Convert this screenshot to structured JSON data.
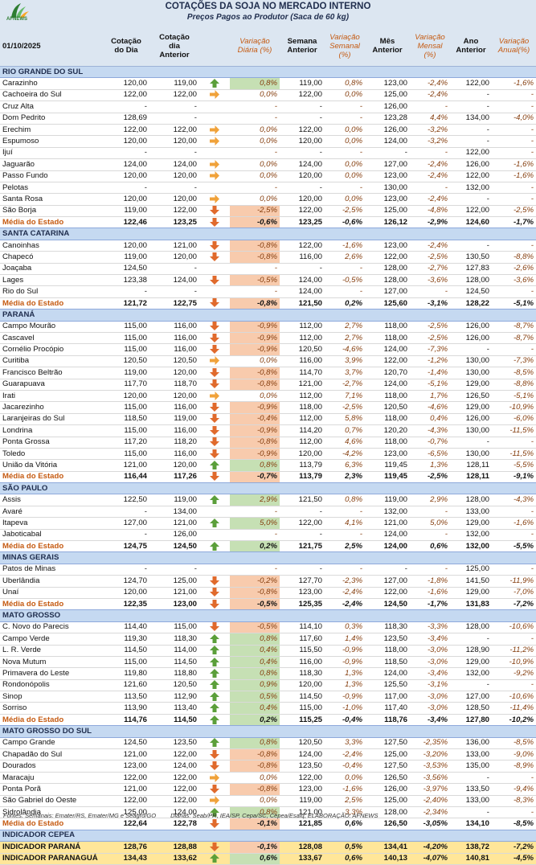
{
  "header": {
    "logo": "AFNEWS",
    "title": "COTAÇÕES  DA SOJA NO MERCADO INTERNO",
    "subtitle": "Preços Pagos ao Produtor (Saca de 60 kg)",
    "date": "01/10/2025",
    "columns": [
      "Cotação\ndo Dia",
      "Cotação\ndia\nAnterior",
      "Variação\nDiária (%)",
      "Semana\nAnterior",
      "Variação\nSemanal\n(%)",
      "Mês\nAnterior",
      "Variação\nMensal\n(%)",
      "Ano\nAnterior",
      "Variação\nAnual(%)"
    ]
  },
  "sections": [
    {
      "title": "RIO GRANDE DO SUL",
      "total_row": true,
      "highlight": false,
      "trends": [
        "up",
        "flat",
        null,
        null,
        "flat",
        "flat",
        null,
        "flat",
        "flat",
        null,
        "flat",
        "down",
        "down"
      ],
      "rows": [
        [
          "Carazinho",
          "120,00",
          "119,00",
          "0,8%",
          "119,00",
          "0,8%",
          "123,00",
          "-2,4%",
          "122,00",
          "-1,6%"
        ],
        [
          "Cachoeira do Sul",
          "122,00",
          "122,00",
          "0,0%",
          "122,00",
          "0,0%",
          "125,00",
          "-2,4%",
          "-",
          "-"
        ],
        [
          "Cruz Alta",
          "-",
          "-",
          "-",
          "-",
          "-",
          "126,00",
          "-",
          "-",
          "-"
        ],
        [
          "Dom Pedrito",
          "128,69",
          "-",
          "-",
          "-",
          "-",
          "123,28",
          "4,4%",
          "134,00",
          "-4,0%"
        ],
        [
          "Erechim",
          "122,00",
          "122,00",
          "0,0%",
          "122,00",
          "0,0%",
          "126,00",
          "-3,2%",
          "-",
          "-"
        ],
        [
          "Espumoso",
          "120,00",
          "120,00",
          "0,0%",
          "120,00",
          "0,0%",
          "124,00",
          "-3,2%",
          "-",
          "-"
        ],
        [
          "Ijuí",
          "-",
          "-",
          "-",
          "-",
          "-",
          "-",
          "-",
          "122,00",
          "-"
        ],
        [
          "Jaguarão",
          "124,00",
          "124,00",
          "0,0%",
          "124,00",
          "0,0%",
          "127,00",
          "-2,4%",
          "126,00",
          "-1,6%"
        ],
        [
          "Passo Fundo",
          "120,00",
          "120,00",
          "0,0%",
          "120,00",
          "0,0%",
          "123,00",
          "-2,4%",
          "122,00",
          "-1,6%"
        ],
        [
          "Pelotas",
          "-",
          "-",
          "-",
          "-",
          "-",
          "130,00",
          "-",
          "132,00",
          "-"
        ],
        [
          "Santa Rosa",
          "120,00",
          "120,00",
          "0,0%",
          "120,00",
          "0,0%",
          "123,00",
          "-2,4%",
          "-",
          "-"
        ],
        [
          "São Borja",
          "119,00",
          "122,00",
          "-2,5%",
          "122,00",
          "-2,5%",
          "125,00",
          "-4,8%",
          "122,00",
          "-2,5%"
        ],
        [
          "Média do Estado",
          "122,46",
          "123,25",
          "-0,6%",
          "123,25",
          "-0,6%",
          "126,12",
          "-2,9%",
          "124,60",
          "-1,7%"
        ]
      ]
    },
    {
      "title": "SANTA CATARINA",
      "total_row": true,
      "highlight": false,
      "trends": [
        "down",
        "down",
        null,
        "down",
        null,
        "down"
      ],
      "rows": [
        [
          "Canoinhas",
          "120,00",
          "121,00",
          "-0,8%",
          "122,00",
          "-1,6%",
          "123,00",
          "-2,4%",
          "-",
          "-"
        ],
        [
          "Chapecó",
          "119,00",
          "120,00",
          "-0,8%",
          "116,00",
          "2,6%",
          "122,00",
          "-2,5%",
          "130,50",
          "-8,8%"
        ],
        [
          "Joaçaba",
          "124,50",
          "-",
          "-",
          "-",
          "-",
          "128,00",
          "-2,7%",
          "127,83",
          "-2,6%"
        ],
        [
          "Lages",
          "123,38",
          "124,00",
          "-0,5%",
          "124,00",
          "-0,5%",
          "128,00",
          "-3,6%",
          "128,00",
          "-3,6%"
        ],
        [
          "Rio do Sul",
          "-",
          "-",
          "-",
          "124,00",
          "-",
          "127,00",
          "-",
          "124,50",
          "-"
        ],
        [
          "Média do Estado",
          "121,72",
          "122,75",
          "-0,8%",
          "121,50",
          "0,2%",
          "125,60",
          "-3,1%",
          "128,22",
          "-5,1%"
        ]
      ]
    },
    {
      "title": "PARANÁ",
      "total_row": true,
      "highlight": false,
      "trends": [
        "down",
        "down",
        "down",
        "flat",
        "down",
        "down",
        "flat",
        "down",
        "down",
        "down",
        "down",
        "down",
        "up",
        "down"
      ],
      "rows": [
        [
          "Campo Mourão",
          "115,00",
          "116,00",
          "-0,9%",
          "112,00",
          "2,7%",
          "118,00",
          "-2,5%",
          "126,00",
          "-8,7%"
        ],
        [
          "Cascavel",
          "115,00",
          "116,00",
          "-0,9%",
          "112,00",
          "2,7%",
          "118,00",
          "-2,5%",
          "126,00",
          "-8,7%"
        ],
        [
          "Cornélio Procópio",
          "115,00",
          "116,00",
          "-0,9%",
          "120,50",
          "-4,6%",
          "124,00",
          "-7,3%",
          "-",
          "-"
        ],
        [
          "Curitiba",
          "120,50",
          "120,50",
          "0,0%",
          "116,00",
          "3,9%",
          "122,00",
          "-1,2%",
          "130,00",
          "-7,3%"
        ],
        [
          "Francisco Beltrão",
          "119,00",
          "120,00",
          "-0,8%",
          "114,70",
          "3,7%",
          "120,70",
          "-1,4%",
          "130,00",
          "-8,5%"
        ],
        [
          "Guarapuava",
          "117,70",
          "118,70",
          "-0,8%",
          "121,00",
          "-2,7%",
          "124,00",
          "-5,1%",
          "129,00",
          "-8,8%"
        ],
        [
          "Irati",
          "120,00",
          "120,00",
          "0,0%",
          "112,00",
          "7,1%",
          "118,00",
          "1,7%",
          "126,50",
          "-5,1%"
        ],
        [
          "Jacarezinho",
          "115,00",
          "116,00",
          "-0,9%",
          "118,00",
          "-2,5%",
          "120,50",
          "-4,6%",
          "129,00",
          "-10,9%"
        ],
        [
          "Laranjeiras do Sul",
          "118,50",
          "119,00",
          "-0,4%",
          "112,00",
          "5,8%",
          "118,00",
          "0,4%",
          "126,00",
          "-6,0%"
        ],
        [
          "Londrina",
          "115,00",
          "116,00",
          "-0,9%",
          "114,20",
          "0,7%",
          "120,20",
          "-4,3%",
          "130,00",
          "-11,5%"
        ],
        [
          "Ponta Grossa",
          "117,20",
          "118,20",
          "-0,8%",
          "112,00",
          "4,6%",
          "118,00",
          "-0,7%",
          "-",
          "-"
        ],
        [
          "Toledo",
          "115,00",
          "116,00",
          "-0,9%",
          "120,00",
          "-4,2%",
          "123,00",
          "-6,5%",
          "130,00",
          "-11,5%"
        ],
        [
          "União da Vitória",
          "121,00",
          "120,00",
          "0,8%",
          "113,79",
          "6,3%",
          "119,45",
          "1,3%",
          "128,11",
          "-5,5%"
        ],
        [
          "Média do Estado",
          "116,44",
          "117,26",
          "-0,7%",
          "113,79",
          "2,3%",
          "119,45",
          "-2,5%",
          "128,11",
          "-9,1%"
        ]
      ]
    },
    {
      "title": "SÃO PAULO",
      "total_row": true,
      "highlight": false,
      "trends": [
        "up",
        null,
        "up",
        null,
        "up"
      ],
      "rows": [
        [
          "Assis",
          "122,50",
          "119,00",
          "2,9%",
          "121,50",
          "0,8%",
          "119,00",
          "2,9%",
          "128,00",
          "-4,3%"
        ],
        [
          "Avaré",
          "-",
          "134,00",
          "-",
          "-",
          "-",
          "132,00",
          "-",
          "133,00",
          "-"
        ],
        [
          "Itapeva",
          "127,00",
          "121,00",
          "5,0%",
          "122,00",
          "4,1%",
          "121,00",
          "5,0%",
          "129,00",
          "-1,6%"
        ],
        [
          "Jaboticabal",
          "-",
          "126,00",
          "-",
          "-",
          "-",
          "124,00",
          "-",
          "132,00",
          "-"
        ],
        [
          "Média do Estado",
          "124,75",
          "124,50",
          "0,2%",
          "121,75",
          "2,5%",
          "124,00",
          "0,6%",
          "132,00",
          "-5,5%"
        ]
      ]
    },
    {
      "title": "MINAS GERAIS",
      "total_row": true,
      "highlight": false,
      "trends": [
        null,
        "down",
        "down",
        "down"
      ],
      "rows": [
        [
          "Patos de Minas",
          "-",
          "-",
          "-",
          "-",
          "-",
          "-",
          "-",
          "125,00",
          "-"
        ],
        [
          "Uberlândia",
          "124,70",
          "125,00",
          "-0,2%",
          "127,70",
          "-2,3%",
          "127,00",
          "-1,8%",
          "141,50",
          "-11,9%"
        ],
        [
          "Unaí",
          "120,00",
          "121,00",
          "-0,8%",
          "123,00",
          "-2,4%",
          "122,00",
          "-1,6%",
          "129,00",
          "-7,0%"
        ],
        [
          "Média do Estado",
          "122,35",
          "123,00",
          "-0,5%",
          "125,35",
          "-2,4%",
          "124,50",
          "-1,7%",
          "131,83",
          "-7,2%"
        ]
      ]
    },
    {
      "title": "MATO GROSSO",
      "total_row": true,
      "highlight": false,
      "trends": [
        "down",
        "up",
        "up",
        "up",
        "up",
        "up",
        "up",
        "up",
        "up"
      ],
      "rows": [
        [
          "C. Novo do Parecis",
          "114,40",
          "115,00",
          "-0,5%",
          "114,10",
          "0,3%",
          "118,30",
          "-3,3%",
          "128,00",
          "-10,6%"
        ],
        [
          "Campo Verde",
          "119,30",
          "118,30",
          "0,8%",
          "117,60",
          "1,4%",
          "123,50",
          "-3,4%",
          "-",
          "-"
        ],
        [
          "L. R. Verde",
          "114,50",
          "114,00",
          "0,4%",
          "115,50",
          "-0,9%",
          "118,00",
          "-3,0%",
          "128,90",
          "-11,2%"
        ],
        [
          "Nova Mutum",
          "115,00",
          "114,50",
          "0,4%",
          "116,00",
          "-0,9%",
          "118,50",
          "-3,0%",
          "129,00",
          "-10,9%"
        ],
        [
          "Primavera do Leste",
          "119,80",
          "118,80",
          "0,8%",
          "118,30",
          "1,3%",
          "124,00",
          "-3,4%",
          "132,00",
          "-9,2%"
        ],
        [
          "Rondonópolis",
          "121,60",
          "120,50",
          "0,9%",
          "120,00",
          "1,3%",
          "125,50",
          "-3,1%",
          "-",
          "-"
        ],
        [
          "Sinop",
          "113,50",
          "112,90",
          "0,5%",
          "114,50",
          "-0,9%",
          "117,00",
          "-3,0%",
          "127,00",
          "-10,6%"
        ],
        [
          "Sorriso",
          "113,90",
          "113,40",
          "0,4%",
          "115,00",
          "-1,0%",
          "117,40",
          "-3,0%",
          "128,50",
          "-11,4%"
        ],
        [
          "Média do Estado",
          "114,76",
          "114,50",
          "0,2%",
          "115,25",
          "-0,4%",
          "118,76",
          "-3,4%",
          "127,80",
          "-10,2%"
        ]
      ]
    },
    {
      "title": "MATO GROSSO DO SUL",
      "total_row": true,
      "highlight": false,
      "trends": [
        "up",
        "down",
        "down",
        "flat",
        "down",
        "flat",
        "up",
        "down"
      ],
      "rows": [
        [
          "Campo Grande",
          "124,50",
          "123,50",
          "0,8%",
          "120,50",
          "3,3%",
          "127,50",
          "-2,35%",
          "136,00",
          "-8,5%"
        ],
        [
          "Chapadão do Sul",
          "121,00",
          "122,00",
          "-0,8%",
          "124,00",
          "-2,4%",
          "125,00",
          "-3,20%",
          "133,00",
          "-9,0%"
        ],
        [
          "Dourados",
          "123,00",
          "124,00",
          "-0,8%",
          "123,50",
          "-0,4%",
          "127,50",
          "-3,53%",
          "135,00",
          "-8,9%"
        ],
        [
          "Maracaju",
          "122,00",
          "122,00",
          "0,0%",
          "122,00",
          "0,0%",
          "126,50",
          "-3,56%",
          "-",
          "-"
        ],
        [
          "Ponta Porã",
          "121,00",
          "122,00",
          "-0,8%",
          "123,00",
          "-1,6%",
          "126,00",
          "-3,97%",
          "133,50",
          "-9,4%"
        ],
        [
          "São Gabriel do Oeste",
          "122,00",
          "122,00",
          "0,0%",
          "119,00",
          "2,5%",
          "125,00",
          "-2,40%",
          "133,00",
          "-8,3%"
        ],
        [
          "Sidrolândia",
          "125,00",
          "124,00",
          "0,8%",
          "121,00",
          "3,3%",
          "128,00",
          "-2,34%",
          "-",
          "-"
        ],
        [
          "Média do Estado",
          "122,64",
          "122,78",
          "-0,1%",
          "121,85",
          "0,6%",
          "126,50",
          "-3,05%",
          "134,10",
          "-8,5%"
        ]
      ]
    },
    {
      "title": "INDICADOR CEPEA",
      "total_row": false,
      "highlight": true,
      "trends": [
        "down",
        "up"
      ],
      "rows": [
        [
          "INDICADOR PARANÁ",
          "128,76",
          "128,88",
          "-0,1%",
          "128,08",
          "0,5%",
          "134,41",
          "-4,20%",
          "138,72",
          "-7,2%"
        ],
        [
          "INDICADOR PARANAGUÁ",
          "134,43",
          "133,62",
          "0,6%",
          "133,67",
          "0,6%",
          "140,13",
          "-4,07%",
          "140,81",
          "-4,5%"
        ]
      ]
    }
  ],
  "footer": {
    "weekly": "Fontes: Semanais: Emater/RS, Emater/MG e Seagro/GO",
    "daily": "Diárias: Seab/PR, IEA/SP, Cepa/SC, Cepea/Esalq; ELABORAÇÃO: AFNEWS"
  }
}
